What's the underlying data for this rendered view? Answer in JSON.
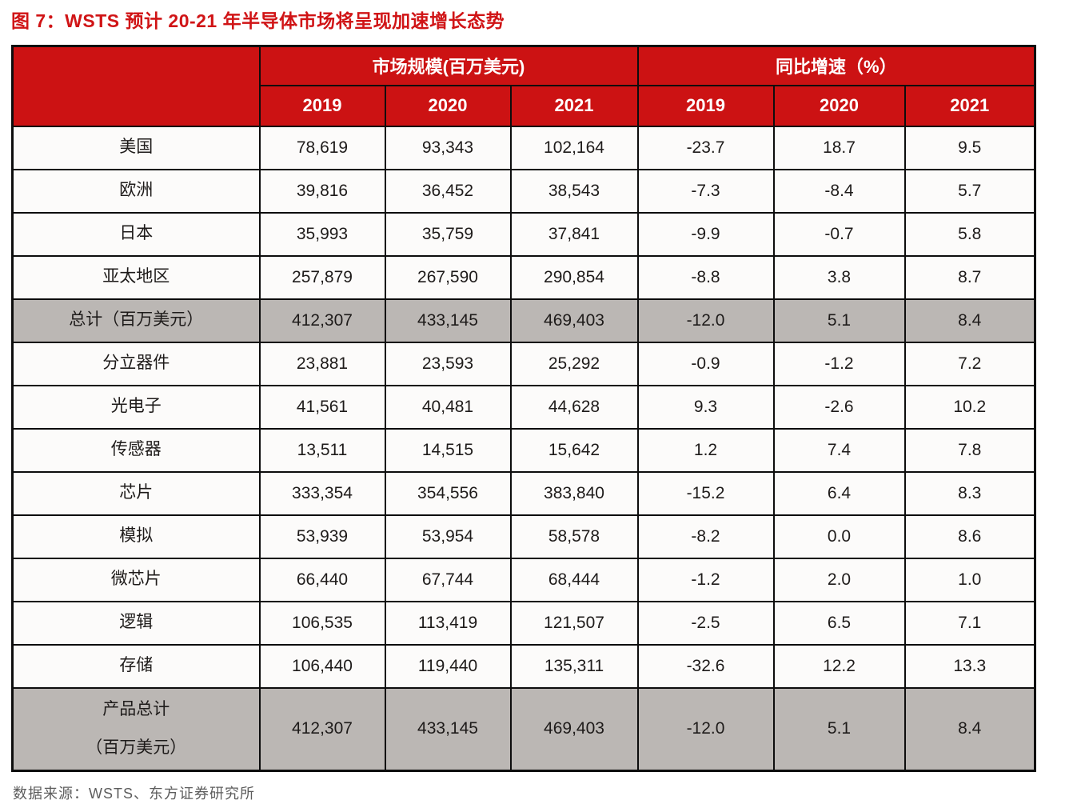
{
  "chart_data": {
    "type": "table",
    "title": "图 7：WSTS 预计 20-21 年半导体市场将呈现加速增长态势",
    "column_groups": [
      "市场规模(百万美元)",
      "同比增速（%）"
    ],
    "years": [
      "2019",
      "2020",
      "2021",
      "2019",
      "2020",
      "2021"
    ],
    "rows": [
      {
        "label": "美国",
        "type": "normal",
        "values": [
          "78,619",
          "93,343",
          "102,164",
          "-23.7",
          "18.7",
          "9.5"
        ]
      },
      {
        "label": "欧洲",
        "type": "normal",
        "values": [
          "39,816",
          "36,452",
          "38,543",
          "-7.3",
          "-8.4",
          "5.7"
        ]
      },
      {
        "label": "日本",
        "type": "normal",
        "values": [
          "35,993",
          "35,759",
          "37,841",
          "-9.9",
          "-0.7",
          "5.8"
        ]
      },
      {
        "label": "亚太地区",
        "type": "normal",
        "values": [
          "257,879",
          "267,590",
          "290,854",
          "-8.8",
          "3.8",
          "8.7"
        ]
      },
      {
        "label": "总计（百万美元）",
        "type": "total",
        "values": [
          "412,307",
          "433,145",
          "469,403",
          "-12.0",
          "5.1",
          "8.4"
        ]
      },
      {
        "label": "分立器件",
        "type": "normal",
        "values": [
          "23,881",
          "23,593",
          "25,292",
          "-0.9",
          "-1.2",
          "7.2"
        ]
      },
      {
        "label": "光电子",
        "type": "normal",
        "values": [
          "41,561",
          "40,481",
          "44,628",
          "9.3",
          "-2.6",
          "10.2"
        ]
      },
      {
        "label": "传感器",
        "type": "normal",
        "values": [
          "13,511",
          "14,515",
          "15,642",
          "1.2",
          "7.4",
          "7.8"
        ]
      },
      {
        "label": "芯片",
        "type": "normal",
        "values": [
          "333,354",
          "354,556",
          "383,840",
          "-15.2",
          "6.4",
          "8.3"
        ]
      },
      {
        "label": "模拟",
        "type": "normal",
        "values": [
          "53,939",
          "53,954",
          "58,578",
          "-8.2",
          "0.0",
          "8.6"
        ]
      },
      {
        "label": "微芯片",
        "type": "normal",
        "values": [
          "66,440",
          "67,744",
          "68,444",
          "-1.2",
          "2.0",
          "1.0"
        ]
      },
      {
        "label": "逻辑",
        "type": "normal",
        "values": [
          "106,535",
          "113,419",
          "121,507",
          "-2.5",
          "6.5",
          "7.1"
        ]
      },
      {
        "label": "存储",
        "type": "normal",
        "values": [
          "106,440",
          "119,440",
          "135,311",
          "-32.6",
          "12.2",
          "13.3"
        ]
      },
      {
        "label": "产品总计\n（百万美元）",
        "type": "total-tall",
        "values": [
          "412,307",
          "433,145",
          "469,403",
          "-12.0",
          "5.1",
          "8.4"
        ]
      }
    ],
    "source": "数据来源：WSTS、东方证券研究所"
  },
  "colors": {
    "header_red": "#cc1213",
    "title_red": "#d01416",
    "total_row_gray": "#bbb7b4",
    "row_bg": "#fcfbfa",
    "border_black": "#0d0d0d",
    "footer_gray": "#5d5d5d"
  }
}
